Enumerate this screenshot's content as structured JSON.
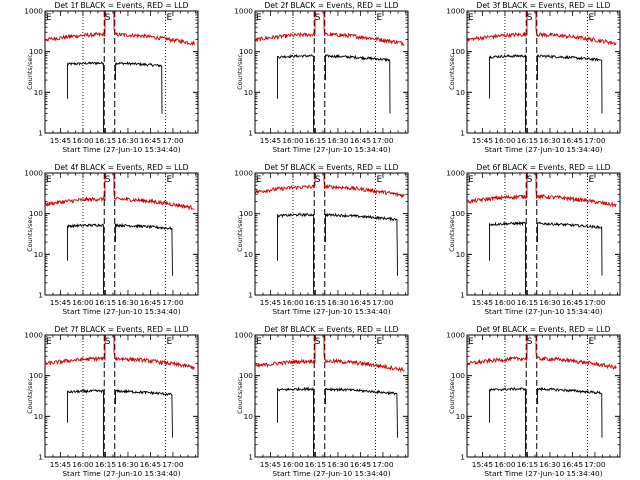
{
  "page": {
    "y_axis_label": "Counts/sec",
    "x_axis_label": "Start Time (27-Jun-10 15:34:40)",
    "x_tick_labels": [
      "15:45",
      "16:00",
      "16:15",
      "16:30",
      "16:45",
      "17:00"
    ],
    "y_tick_labels": [
      "1",
      "10",
      "100",
      "1000"
    ],
    "markers": [
      "E",
      "S",
      "E"
    ]
  },
  "chart_data": [
    {
      "type": "line",
      "title": "Det 1f BLACK = Events, RED = LLD",
      "xlabel": "Start Time (27-Jun-10 15:34:40)",
      "ylabel": "Counts/sec",
      "log_y": true,
      "ylim": [
        1,
        1000
      ],
      "series": [
        {
          "name": "Events",
          "color": "#000000",
          "level": 50,
          "start_min": 15,
          "end_min": 78,
          "gap": [
            39,
            47
          ]
        },
        {
          "name": "LLD",
          "color": "#cc0000",
          "level": 230,
          "start_min": 0,
          "end_min": 100,
          "gap": [
            40,
            46
          ]
        }
      ]
    },
    {
      "type": "line",
      "title": "Det 2f BLACK = Events, RED = LLD",
      "xlabel": "Start Time (27-Jun-10 15:34:40)",
      "ylabel": "Counts/sec",
      "log_y": true,
      "ylim": [
        1,
        1000
      ],
      "series": [
        {
          "name": "Events",
          "color": "#000000",
          "level": 75,
          "start_min": 15,
          "end_min": 90,
          "gap": [
            39,
            47
          ]
        },
        {
          "name": "LLD",
          "color": "#cc0000",
          "level": 230,
          "start_min": 0,
          "end_min": 100,
          "gap": [
            40,
            46
          ]
        }
      ]
    },
    {
      "type": "line",
      "title": "Det 3f BLACK = Events, RED = LLD",
      "xlabel": "Start Time (27-Jun-10 15:34:40)",
      "ylabel": "Counts/sec",
      "log_y": true,
      "ylim": [
        1,
        1000
      ],
      "series": [
        {
          "name": "Events",
          "color": "#000000",
          "level": 75,
          "start_min": 15,
          "end_min": 90,
          "gap": [
            39,
            47
          ]
        },
        {
          "name": "LLD",
          "color": "#cc0000",
          "level": 230,
          "start_min": 0,
          "end_min": 100,
          "gap": [
            40,
            46
          ]
        }
      ]
    },
    {
      "type": "line",
      "title": "Det 4f BLACK = Events, RED = LLD",
      "xlabel": "Start Time (27-Jun-10 15:34:40)",
      "ylabel": "Counts/sec",
      "log_y": true,
      "ylim": [
        1,
        1000
      ],
      "series": [
        {
          "name": "Events",
          "color": "#000000",
          "level": 50,
          "start_min": 15,
          "end_min": 85,
          "gap": [
            39,
            47
          ]
        },
        {
          "name": "LLD",
          "color": "#cc0000",
          "level": 200,
          "start_min": 0,
          "end_min": 100,
          "gap": [
            40,
            46
          ]
        }
      ]
    },
    {
      "type": "line",
      "title": "Det 5f BLACK = Events, RED = LLD",
      "xlabel": "Start Time (27-Jun-10 15:34:40)",
      "ylabel": "Counts/sec",
      "log_y": true,
      "ylim": [
        1,
        1000
      ],
      "series": [
        {
          "name": "Events",
          "color": "#000000",
          "level": 90,
          "start_min": 15,
          "end_min": 95,
          "gap": [
            39,
            47
          ]
        },
        {
          "name": "LLD",
          "color": "#cc0000",
          "level": 400,
          "start_min": 0,
          "end_min": 100,
          "gap": [
            40,
            46
          ]
        }
      ]
    },
    {
      "type": "line",
      "title": "Det 6f BLACK = Events, RED = LLD",
      "xlabel": "Start Time (27-Jun-10 15:34:40)",
      "ylabel": "Counts/sec",
      "log_y": true,
      "ylim": [
        1,
        1000
      ],
      "series": [
        {
          "name": "Events",
          "color": "#000000",
          "level": 55,
          "start_min": 15,
          "end_min": 90,
          "gap": [
            39,
            47
          ]
        },
        {
          "name": "LLD",
          "color": "#cc0000",
          "level": 230,
          "start_min": 0,
          "end_min": 100,
          "gap": [
            40,
            46
          ]
        }
      ]
    },
    {
      "type": "line",
      "title": "Det 7f BLACK = Events, RED = LLD",
      "xlabel": "Start Time (27-Jun-10 15:34:40)",
      "ylabel": "Counts/sec",
      "log_y": true,
      "ylim": [
        1,
        1000
      ],
      "series": [
        {
          "name": "Events",
          "color": "#000000",
          "level": 40,
          "start_min": 15,
          "end_min": 85,
          "gap": [
            39,
            47
          ]
        },
        {
          "name": "LLD",
          "color": "#cc0000",
          "level": 230,
          "start_min": 0,
          "end_min": 100,
          "gap": [
            40,
            46
          ]
        }
      ]
    },
    {
      "type": "line",
      "title": "Det 8f BLACK = Events, RED = LLD",
      "xlabel": "Start Time (27-Jun-10 15:34:40)",
      "ylabel": "Counts/sec",
      "log_y": true,
      "ylim": [
        1,
        1000
      ],
      "series": [
        {
          "name": "Events",
          "color": "#000000",
          "level": 45,
          "start_min": 15,
          "end_min": 95,
          "gap": [
            39,
            47
          ]
        },
        {
          "name": "LLD",
          "color": "#cc0000",
          "level": 200,
          "start_min": 0,
          "end_min": 100,
          "gap": [
            40,
            46
          ]
        }
      ]
    },
    {
      "type": "line",
      "title": "Det 9f BLACK = Events, RED = LLD",
      "xlabel": "Start Time (27-Jun-10 15:34:40)",
      "ylabel": "Counts/sec",
      "log_y": true,
      "ylim": [
        1,
        1000
      ],
      "series": [
        {
          "name": "Events",
          "color": "#000000",
          "level": 45,
          "start_min": 15,
          "end_min": 90,
          "gap": [
            39,
            47
          ]
        },
        {
          "name": "LLD",
          "color": "#cc0000",
          "level": 230,
          "start_min": 0,
          "end_min": 100,
          "gap": [
            40,
            46
          ]
        }
      ]
    }
  ]
}
